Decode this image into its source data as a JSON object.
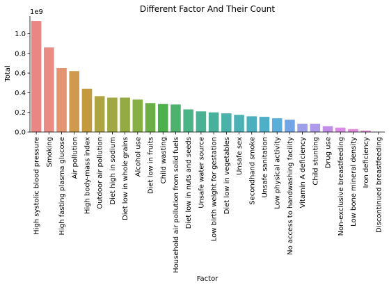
{
  "chart_data": {
    "type": "bar",
    "title": "Different Factor And Their Count",
    "xlabel": "Factor",
    "ylabel": "Total",
    "y_offset_label": "1e9",
    "ylim": [
      0,
      1.18
    ],
    "yticks": [
      0.0,
      0.2,
      0.4,
      0.6,
      0.8,
      1.0
    ],
    "ytick_labels": [
      "0.0",
      "0.2",
      "0.4",
      "0.6",
      "0.8",
      "1.0"
    ],
    "grid": false,
    "categories": [
      "High systolic blood pressure",
      "Smoking",
      "High fasting plasma glucose",
      "Air pollution",
      "High body-mass index",
      "Outdoor air pollution",
      "Diet high in sodium",
      "Diet low in whole grains",
      "Alcohol use",
      "Diet low in fruits",
      "Child wasting",
      "Household air pollution from solid fuels",
      "Diet low in nuts and seeds",
      "Unsafe water source",
      "Low birth weight for gestation",
      "Diet low in vegetables",
      "Unsafe sex",
      "Secondhand smoke",
      "Unsafe sanitation",
      "Low physical activity",
      "No access to handwashing facility",
      "Vitamin A deficiency",
      "Child stunting",
      "Drug use",
      "Non-exclusive breastfeeding",
      "Low bone mineral density",
      "Iron deficiency",
      "Discontinued breastfeeding"
    ],
    "values": [
      1.13,
      0.86,
      0.65,
      0.62,
      0.44,
      0.365,
      0.35,
      0.35,
      0.33,
      0.295,
      0.285,
      0.28,
      0.23,
      0.21,
      0.2,
      0.19,
      0.175,
      0.16,
      0.155,
      0.14,
      0.125,
      0.085,
      0.085,
      0.06,
      0.045,
      0.03,
      0.015,
      0.003
    ],
    "colors": [
      "#e98784",
      "#e98c84",
      "#e39572",
      "#d09a4e",
      "#c49a3e",
      "#aea442",
      "#a0a844",
      "#94ab44",
      "#86af44",
      "#6caf46",
      "#4cb04c",
      "#4db26e",
      "#4ab486",
      "#4bb193",
      "#49b09b",
      "#4ab2a8",
      "#4bb1b4",
      "#4cafbe",
      "#50afc8",
      "#59aedc",
      "#71a5e6",
      "#9d9fe8",
      "#ad9be9",
      "#c38ee8",
      "#d98be6",
      "#e18bd9",
      "#e38ccd",
      "#e38cc4"
    ]
  }
}
